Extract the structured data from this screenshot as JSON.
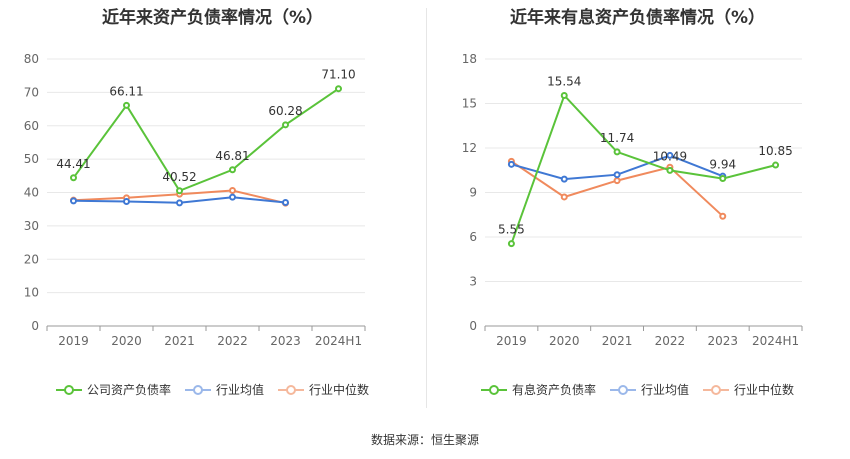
{
  "source_text": "数据来源：恒生聚源",
  "chart_data": [
    {
      "type": "line",
      "title": "近年来资产负债率情况（%）",
      "categories": [
        "2019",
        "2020",
        "2021",
        "2022",
        "2023",
        "2024H1"
      ],
      "ylim": [
        0,
        80
      ],
      "yticks": [
        0,
        10,
        20,
        30,
        40,
        50,
        60,
        70,
        80
      ],
      "grid": true,
      "legend_position": "bottom",
      "series": [
        {
          "name": "公司资产负债率",
          "color": "#5ac33a",
          "labeled": true,
          "values": [
            44.41,
            66.11,
            40.52,
            46.81,
            60.28,
            71.1
          ],
          "labels": [
            "44.41",
            "66.11",
            "40.52",
            "46.81",
            "60.28",
            "71.10"
          ]
        },
        {
          "name": "行业均值",
          "color": "#3f78d4",
          "labeled": false,
          "values": [
            37.5,
            37.3,
            36.9,
            38.6,
            37.0,
            null
          ]
        },
        {
          "name": "行业中位数",
          "color": "#f08a5d",
          "labeled": false,
          "values": [
            37.7,
            38.4,
            39.5,
            40.6,
            36.8,
            null
          ]
        }
      ]
    },
    {
      "type": "line",
      "title": "近年来有息资产负债率情况（%）",
      "categories": [
        "2019",
        "2020",
        "2021",
        "2022",
        "2023",
        "2024H1"
      ],
      "ylim": [
        0,
        18
      ],
      "yticks": [
        0,
        3,
        6,
        9,
        12,
        15,
        18
      ],
      "grid": true,
      "legend_position": "bottom",
      "series": [
        {
          "name": "有息资产负债率",
          "color": "#5ac33a",
          "labeled": true,
          "values": [
            5.55,
            15.54,
            11.74,
            10.49,
            9.94,
            10.85
          ],
          "labels": [
            "5.55",
            "15.54",
            "11.74",
            "10.49",
            "9.94",
            "10.85"
          ]
        },
        {
          "name": "行业均值",
          "color": "#3f78d4",
          "labeled": false,
          "values": [
            10.9,
            9.9,
            10.2,
            11.5,
            10.1,
            null
          ]
        },
        {
          "name": "行业中位数",
          "color": "#f08a5d",
          "labeled": false,
          "values": [
            11.1,
            8.7,
            9.8,
            10.7,
            7.4,
            null
          ]
        }
      ]
    }
  ]
}
